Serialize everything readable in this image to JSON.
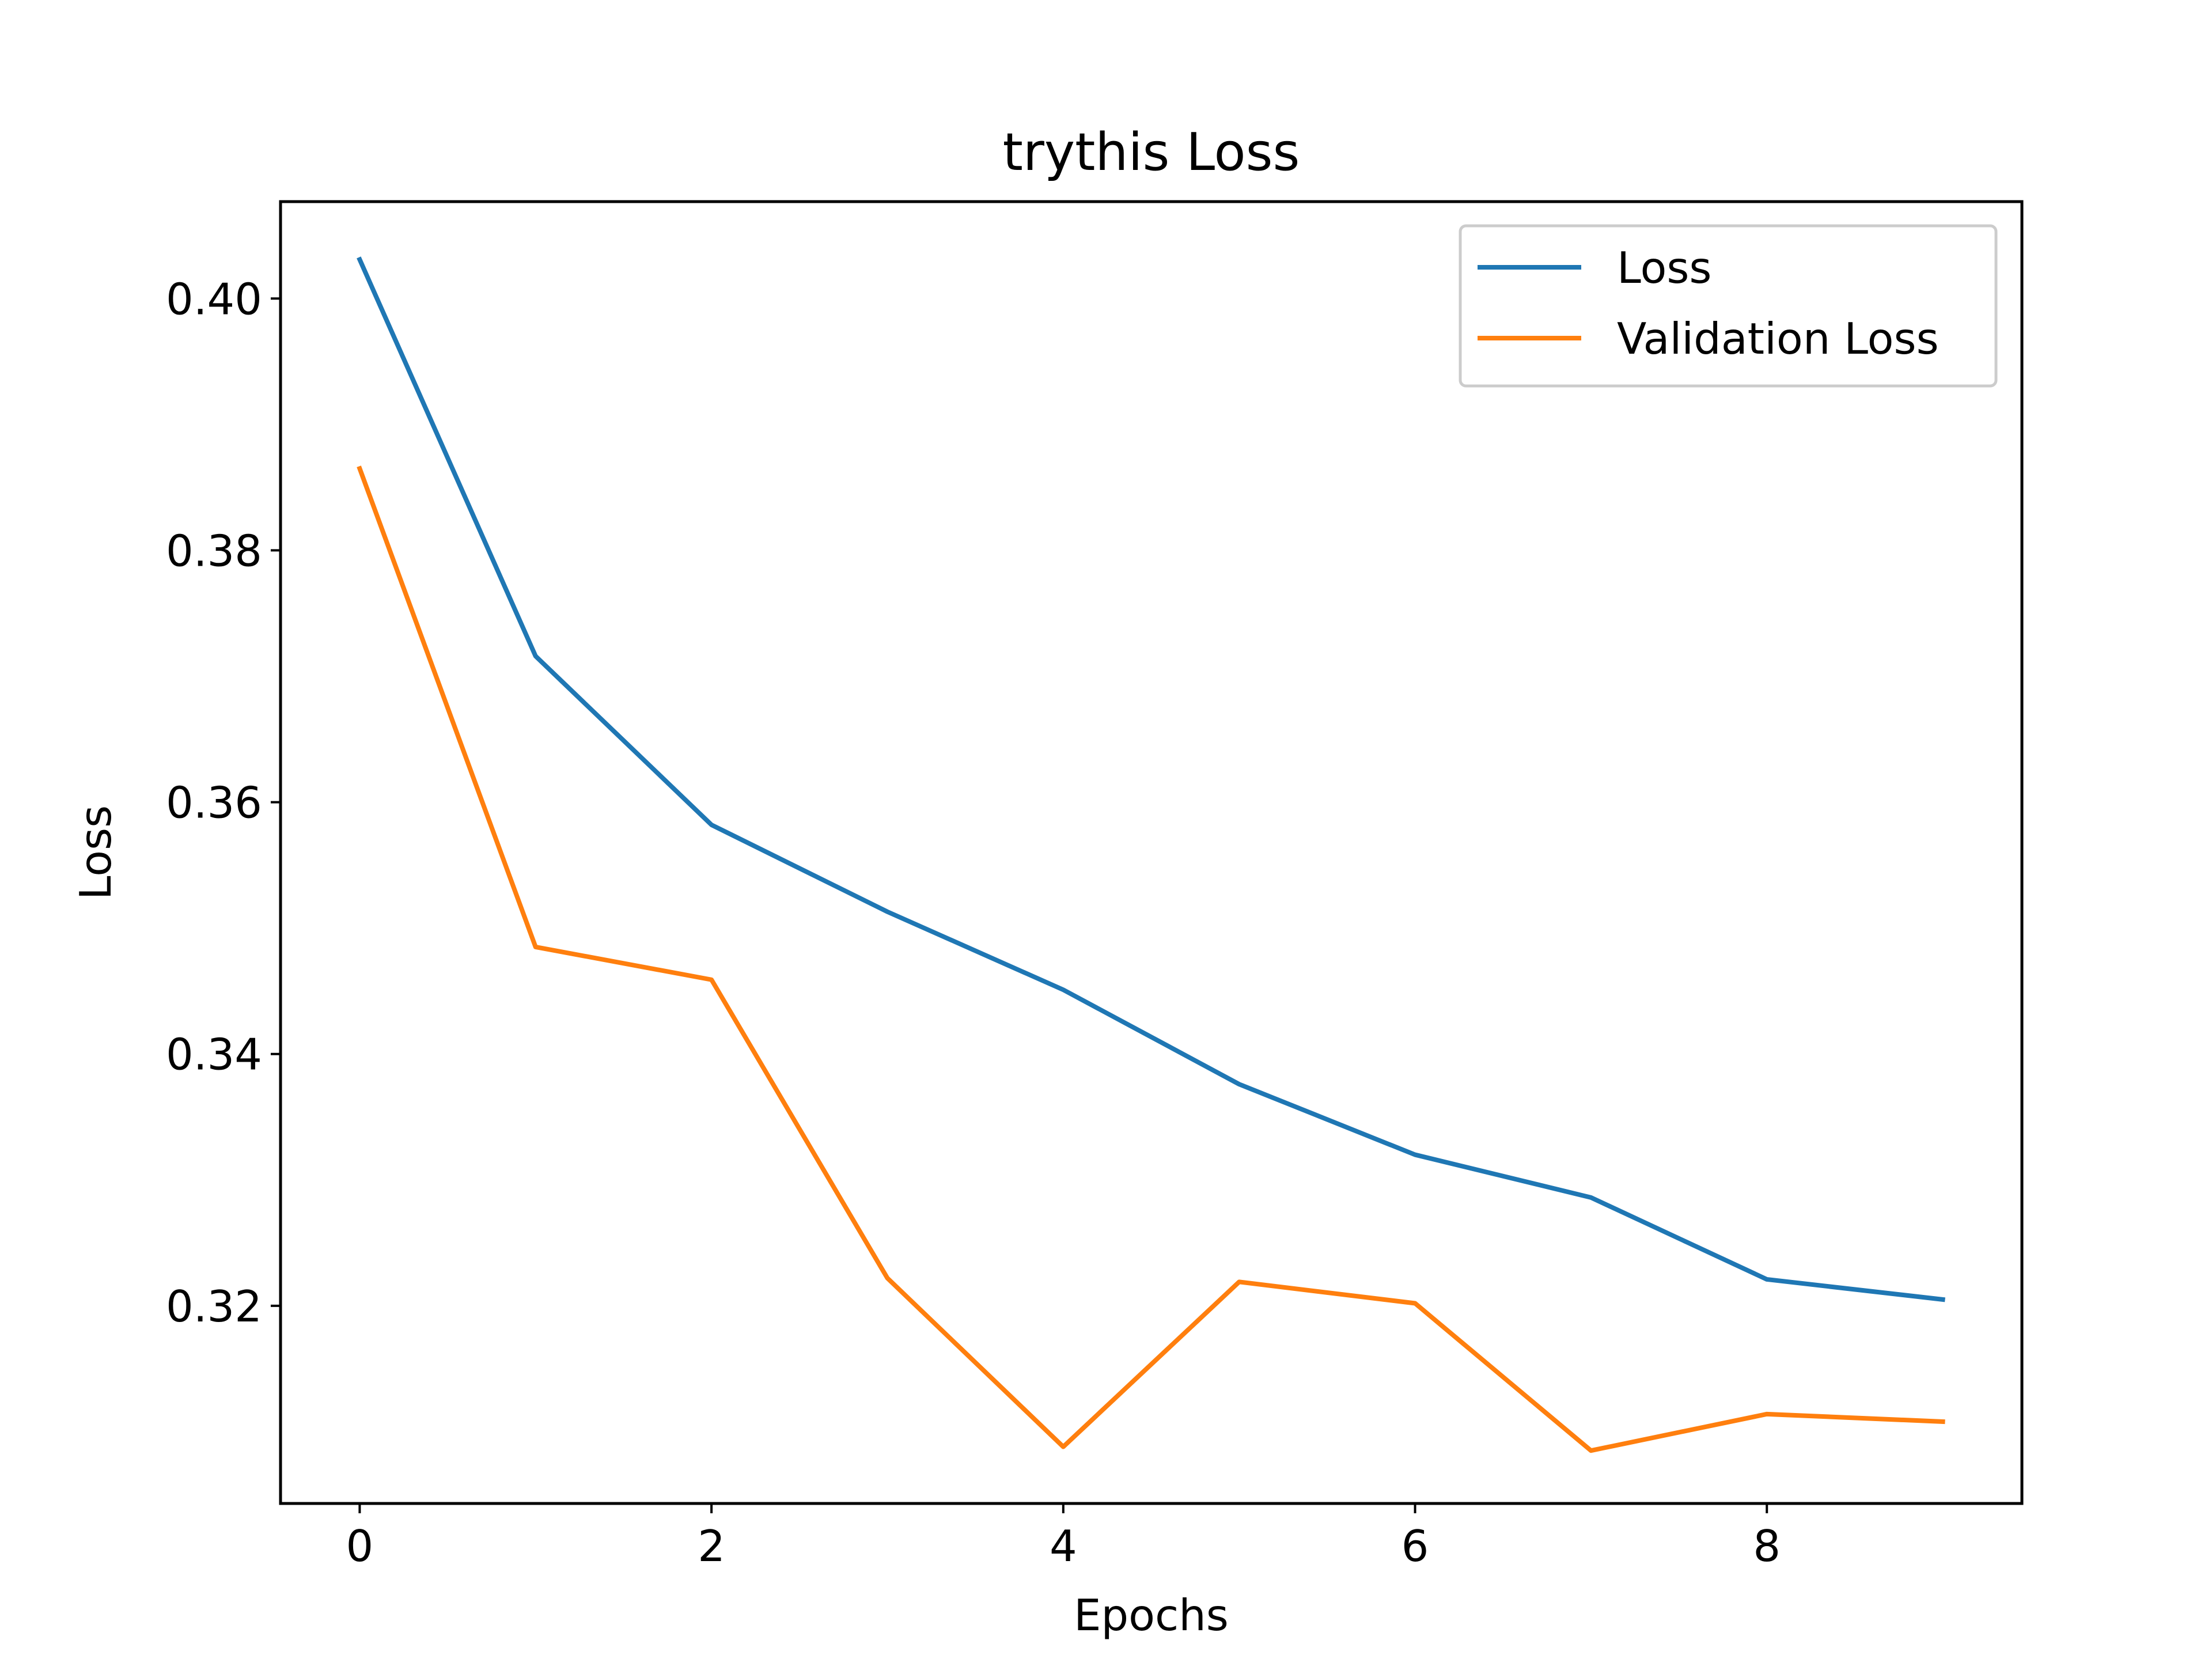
{
  "chart_data": {
    "type": "line",
    "title": "trythis Loss",
    "xlabel": "Epochs",
    "ylabel": "Loss",
    "x": [
      0,
      1,
      2,
      3,
      4,
      5,
      6,
      7,
      8,
      9
    ],
    "xlim": [
      -0.45,
      9.45
    ],
    "ylim": [
      0.3043,
      0.4077
    ],
    "xticks": [
      0,
      2,
      4,
      6,
      8
    ],
    "yticks": [
      0.32,
      0.34,
      0.36,
      0.38,
      0.4
    ],
    "xtick_labels": [
      "0",
      "2",
      "4",
      "6",
      "8"
    ],
    "ytick_labels": [
      "0.32",
      "0.34",
      "0.36",
      "0.38",
      "0.40"
    ],
    "grid": false,
    "legend_position": "top-right",
    "series": [
      {
        "name": "Loss",
        "color": "#1f77b4",
        "values": [
          0.4031,
          0.3716,
          0.3582,
          0.3513,
          0.3451,
          0.3376,
          0.332,
          0.3286,
          0.3221,
          0.3205
        ]
      },
      {
        "name": "Validation Loss",
        "color": "#ff7f0e",
        "values": [
          0.3865,
          0.3485,
          0.3459,
          0.3222,
          0.3088,
          0.3219,
          0.3202,
          0.3085,
          0.3114,
          0.3108
        ]
      }
    ]
  }
}
